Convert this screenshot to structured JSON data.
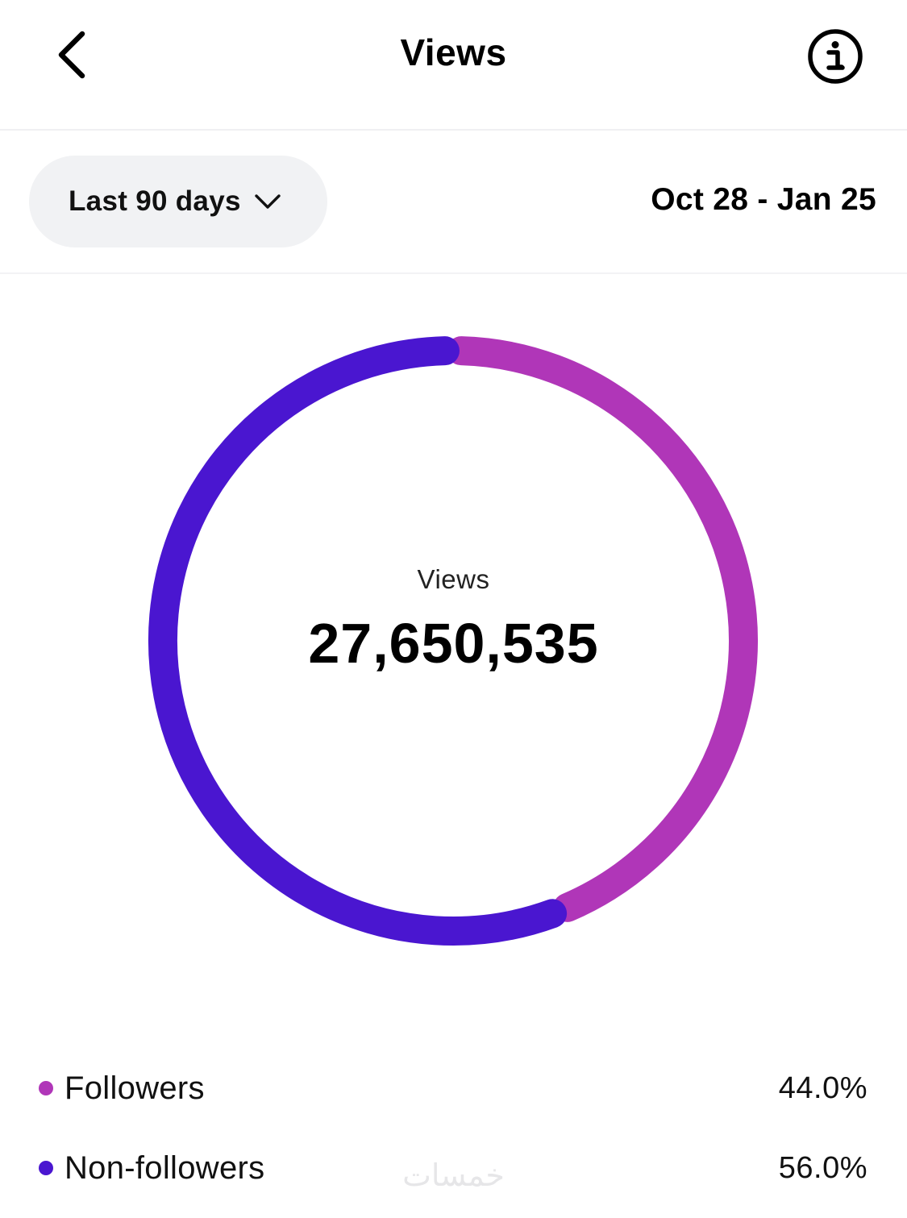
{
  "header": {
    "title": "Views"
  },
  "filter": {
    "range_label": "Last 90 days",
    "date_range": "Oct 28 - Jan 25"
  },
  "summary": {
    "label": "Views",
    "value": "27,650,535"
  },
  "chart_data": {
    "type": "pie",
    "categories": [
      "Followers",
      "Non-followers"
    ],
    "values": [
      44.0,
      56.0
    ],
    "colors": [
      "#b036b8",
      "#4a16d0"
    ]
  },
  "legend": [
    {
      "name": "Followers",
      "percent": "44.0%",
      "color": "#b036b8"
    },
    {
      "name": "Non-followers",
      "percent": "56.0%",
      "color": "#4a16d0"
    }
  ],
  "watermark": "خمسات"
}
